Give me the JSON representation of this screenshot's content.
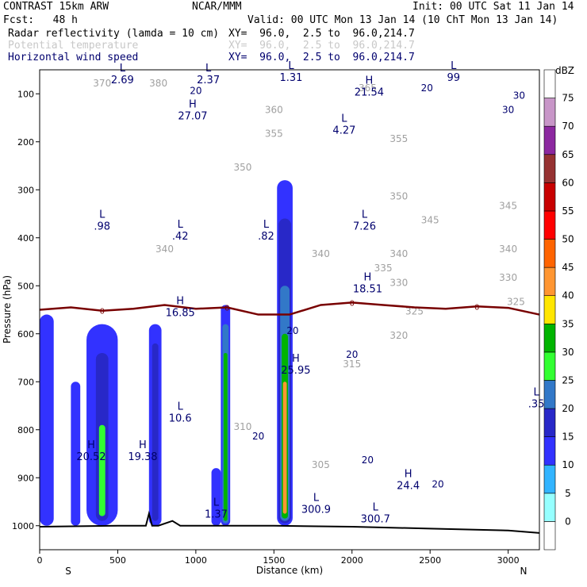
{
  "header": {
    "title_left": "CONTRAST 15km ARW",
    "title_center": "NCAR/MMM",
    "init": "Init: 00 UTC Sat 11 Jan 14",
    "fcst": "Fcst:   48 h",
    "valid": "Valid: 00 UTC Mon 13 Jan 14 (10 ChT Mon 13 Jan 14)",
    "fields": [
      {
        "label": "Radar reflectivity (lamda = 10 cm)",
        "xy": "XY=  96.0,  2.5 to  96.0,214.7",
        "color": "#000000"
      },
      {
        "label": "Potential temperature",
        "xy": "XY=  96.0,  2.5 to  96.0,214.7",
        "color": "#c8c8c8"
      },
      {
        "label": "Horizontal wind speed",
        "xy": "XY=  96.0,  2.5 to  96.0,214.7",
        "color": "#00006e"
      }
    ]
  },
  "chart_data": {
    "type": "heatmap",
    "xlabel": "Distance (km)",
    "ylabel": "Pressure (hPa)",
    "xlim": [
      0,
      3200
    ],
    "ylim": [
      1050,
      50
    ],
    "x_ticks": [
      0,
      500,
      1000,
      1500,
      2000,
      2500,
      3000
    ],
    "y_ticks": [
      100,
      200,
      300,
      400,
      500,
      600,
      700,
      800,
      900,
      1000
    ],
    "x_end_labels": {
      "left": "S",
      "right": "N"
    },
    "colorbar": {
      "unit": "dBZ",
      "levels": [
        0,
        5,
        10,
        15,
        20,
        25,
        30,
        35,
        40,
        45,
        50,
        55,
        60,
        65,
        70,
        75
      ],
      "colors": [
        "#ffffff",
        "#96ffff",
        "#32b4ff",
        "#3232ff",
        "#2828c8",
        "#3278c8",
        "#32ff32",
        "#00b400",
        "#ffe600",
        "#ff9632",
        "#ff6400",
        "#ff0000",
        "#c80000",
        "#963232",
        "#8c28a0",
        "#c896c8",
        "#ffffff"
      ]
    },
    "reflectivity_cells": [
      {
        "x0": 0,
        "x1": 90,
        "p_top": 560,
        "p_bot": 1000,
        "level": 10
      },
      {
        "x0": 200,
        "x1": 260,
        "p_top": 700,
        "p_bot": 1000,
        "level": 10
      },
      {
        "x0": 300,
        "x1": 500,
        "p_top": 580,
        "p_bot": 1000,
        "level": 10
      },
      {
        "x0": 360,
        "x1": 440,
        "p_top": 640,
        "p_bot": 990,
        "level": 15
      },
      {
        "x0": 380,
        "x1": 420,
        "p_top": 790,
        "p_bot": 980,
        "level": 25
      },
      {
        "x0": 700,
        "x1": 780,
        "p_top": 580,
        "p_bot": 1000,
        "level": 10
      },
      {
        "x0": 720,
        "x1": 760,
        "p_top": 620,
        "p_bot": 990,
        "level": 15
      },
      {
        "x0": 1100,
        "x1": 1160,
        "p_top": 880,
        "p_bot": 1000,
        "level": 10
      },
      {
        "x0": 1160,
        "x1": 1220,
        "p_top": 540,
        "p_bot": 1000,
        "level": 10
      },
      {
        "x0": 1170,
        "x1": 1210,
        "p_top": 580,
        "p_bot": 995,
        "level": 20
      },
      {
        "x0": 1178,
        "x1": 1202,
        "p_top": 640,
        "p_bot": 990,
        "level": 30
      },
      {
        "x0": 1520,
        "x1": 1620,
        "p_top": 280,
        "p_bot": 1000,
        "level": 10
      },
      {
        "x0": 1530,
        "x1": 1610,
        "p_top": 360,
        "p_bot": 995,
        "level": 15
      },
      {
        "x0": 1540,
        "x1": 1600,
        "p_top": 500,
        "p_bot": 990,
        "level": 20
      },
      {
        "x0": 1550,
        "x1": 1590,
        "p_top": 600,
        "p_bot": 985,
        "level": 30
      },
      {
        "x0": 1558,
        "x1": 1582,
        "p_top": 700,
        "p_bot": 975,
        "level": 40
      }
    ],
    "freezing_level": {
      "label": "0",
      "x": [
        0,
        200,
        400,
        600,
        800,
        1000,
        1200,
        1400,
        1600,
        1800,
        2000,
        2200,
        2400,
        2600,
        2800,
        3000,
        3200
      ],
      "p": [
        550,
        545,
        552,
        548,
        540,
        548,
        545,
        560,
        560,
        540,
        535,
        540,
        545,
        548,
        543,
        546,
        560
      ]
    },
    "theta_labels": [
      {
        "value": "370",
        "x": 400,
        "p": 85
      },
      {
        "value": "380",
        "x": 760,
        "p": 85
      },
      {
        "value": "365",
        "x": 2100,
        "p": 95
      },
      {
        "value": "360",
        "x": 1500,
        "p": 140
      },
      {
        "value": "355",
        "x": 1500,
        "p": 190
      },
      {
        "value": "355",
        "x": 2300,
        "p": 200
      },
      {
        "value": "350",
        "x": 1300,
        "p": 260
      },
      {
        "value": "350",
        "x": 2300,
        "p": 320
      },
      {
        "value": "345",
        "x": 2500,
        "p": 370
      },
      {
        "value": "345",
        "x": 3000,
        "p": 340
      },
      {
        "value": "340",
        "x": 800,
        "p": 430
      },
      {
        "value": "340",
        "x": 1800,
        "p": 440
      },
      {
        "value": "340",
        "x": 2300,
        "p": 440
      },
      {
        "value": "340",
        "x": 3000,
        "p": 430
      },
      {
        "value": "335",
        "x": 2200,
        "p": 470
      },
      {
        "value": "330",
        "x": 2300,
        "p": 500
      },
      {
        "value": "330",
        "x": 3000,
        "p": 490
      },
      {
        "value": "325",
        "x": 2400,
        "p": 560
      },
      {
        "value": "325",
        "x": 3050,
        "p": 540
      },
      {
        "value": "320",
        "x": 2300,
        "p": 610
      },
      {
        "value": "315",
        "x": 2000,
        "p": 670
      },
      {
        "value": "310",
        "x": 1300,
        "p": 800
      },
      {
        "value": "305",
        "x": 1800,
        "p": 880
      }
    ],
    "wind_labels": [
      {
        "value": "20",
        "x": 1000,
        "p": 100
      },
      {
        "value": "20",
        "x": 2480,
        "p": 95
      },
      {
        "value": "20",
        "x": 1620,
        "p": 600
      },
      {
        "value": "20",
        "x": 2000,
        "p": 650
      },
      {
        "value": "20",
        "x": 1400,
        "p": 820
      },
      {
        "value": "20",
        "x": 2100,
        "p": 870
      },
      {
        "value": "20",
        "x": 2550,
        "p": 920
      },
      {
        "value": "30",
        "x": 3070,
        "p": 110
      },
      {
        "value": "30",
        "x": 3000,
        "p": 140
      }
    ],
    "extrema": [
      {
        "type": "L",
        "value": "2.69",
        "x": 530,
        "p": 75
      },
      {
        "type": "L",
        "value": "2.37",
        "x": 1080,
        "p": 75
      },
      {
        "type": "L",
        "value": "1.31",
        "x": 1610,
        "p": 70
      },
      {
        "type": "H",
        "value": "21.54",
        "x": 2110,
        "p": 100
      },
      {
        "type": "L",
        "value": "99",
        "x": 2650,
        "p": 70
      },
      {
        "type": "H",
        "value": "27.07",
        "x": 980,
        "p": 150
      },
      {
        "type": "L",
        "value": "4.27",
        "x": 1950,
        "p": 180
      },
      {
        "type": "L",
        "value": ".98",
        "x": 400,
        "p": 380
      },
      {
        "type": "L",
        "value": ".42",
        "x": 900,
        "p": 400
      },
      {
        "type": "L",
        "value": ".82",
        "x": 1450,
        "p": 400
      },
      {
        "type": "L",
        "value": "7.26",
        "x": 2080,
        "p": 380
      },
      {
        "type": "H",
        "value": "18.51",
        "x": 2100,
        "p": 510
      },
      {
        "type": "H",
        "value": "16.85",
        "x": 900,
        "p": 560
      },
      {
        "type": "H",
        "value": "25.95",
        "x": 1640,
        "p": 680
      },
      {
        "type": "L",
        "value": "10.6",
        "x": 900,
        "p": 780
      },
      {
        "type": "H",
        "value": "20.52",
        "x": 330,
        "p": 860
      },
      {
        "type": "H",
        "value": "19.38",
        "x": 660,
        "p": 860
      },
      {
        "type": "H",
        "value": "24.4",
        "x": 2360,
        "p": 920
      },
      {
        "type": "L",
        "value": "1.37",
        "x": 1130,
        "p": 980
      },
      {
        "type": "L",
        "value": "300.9",
        "x": 1770,
        "p": 970
      },
      {
        "type": "L",
        "value": "300.7",
        "x": 2150,
        "p": 990
      },
      {
        "type": "L",
        "value": ".35",
        "x": 3180,
        "p": 750
      }
    ],
    "ground": {
      "x": [
        0,
        500,
        680,
        700,
        720,
        760,
        850,
        900,
        1000,
        1500,
        2000,
        2500,
        3000,
        3200
      ],
      "p": [
        1002,
        1000,
        1000,
        975,
        1000,
        1000,
        990,
        1000,
        1000,
        1000,
        1002,
        1006,
        1010,
        1015
      ]
    }
  }
}
